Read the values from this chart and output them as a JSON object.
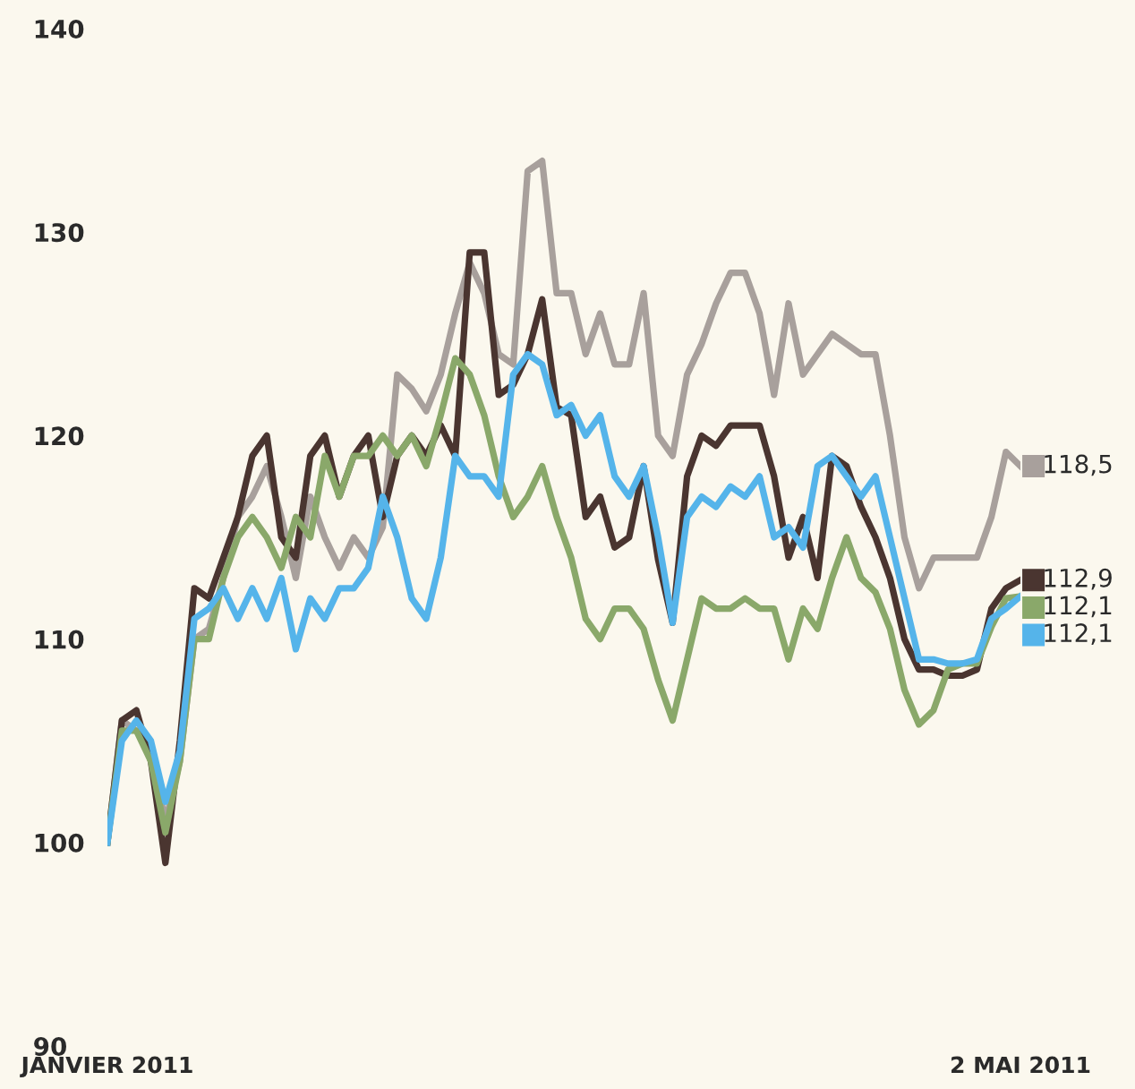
{
  "chart_data": {
    "type": "line",
    "categories": [
      "JANVIER 2011",
      null,
      null,
      null,
      null,
      null,
      null,
      null,
      null,
      null,
      null,
      null,
      null,
      null,
      null,
      null,
      null,
      null,
      null,
      null,
      null,
      null,
      null,
      null,
      null,
      null,
      null,
      null,
      null,
      null,
      null,
      null,
      null,
      null,
      null,
      null,
      null,
      null,
      null,
      null,
      null,
      null,
      null,
      null,
      null,
      null,
      null,
      null,
      null,
      null,
      null,
      null,
      null,
      null,
      null,
      null,
      null,
      null,
      null,
      null,
      null,
      null,
      null,
      "2 MAI 2011"
    ],
    "series": [
      {
        "color": "#a8a09c",
        "values": [
          100,
          106,
          105.5,
          104.5,
          101,
          104,
          110,
          110.5,
          113,
          116,
          117,
          118.5,
          116,
          113,
          117,
          115,
          113.5,
          115,
          114,
          115.5,
          123,
          122.3,
          121.2,
          123,
          126,
          128.5,
          127,
          124,
          123.5,
          133,
          133.5,
          127,
          127,
          124,
          126,
          123.5,
          123.5,
          127,
          120,
          119,
          123,
          124.5,
          126.5,
          128,
          128,
          126,
          122,
          126.5,
          123,
          124,
          125,
          124.5,
          124,
          124,
          120,
          115,
          112.5,
          114,
          114,
          114,
          114,
          116,
          119.2,
          118.5
        ],
        "value_labels": [
          null,
          null,
          null,
          null,
          null,
          null,
          null,
          null,
          null,
          null,
          null,
          null,
          null,
          null,
          null,
          null,
          null,
          null,
          null,
          null,
          null,
          null,
          null,
          null,
          null,
          null,
          null,
          null,
          null,
          null,
          null,
          null,
          null,
          null,
          null,
          null,
          null,
          null,
          null,
          null,
          null,
          null,
          null,
          null,
          null,
          null,
          null,
          null,
          null,
          null,
          null,
          null,
          null,
          null,
          null,
          null,
          null,
          null,
          null,
          null,
          null,
          null,
          null,
          "118,5"
        ]
      },
      {
        "color": "#4a3530",
        "values": [
          100,
          106,
          106.5,
          104,
          99,
          105,
          112.5,
          112,
          114,
          116,
          119,
          120,
          115,
          114,
          119,
          120,
          117,
          119,
          120,
          116,
          119,
          120,
          119,
          120.5,
          119,
          129,
          129,
          122,
          122.5,
          124,
          126.7,
          121.4,
          121,
          116,
          117,
          114.5,
          115,
          118.5,
          113.9,
          110.8,
          118,
          120,
          119.5,
          120.5,
          120.5,
          120.5,
          118,
          114,
          116,
          113,
          119,
          118.5,
          116.5,
          115,
          113,
          110,
          108.5,
          108.5,
          108.2,
          108.2,
          108.5,
          111.5,
          112.5,
          112.9
        ],
        "value_labels": [
          null,
          null,
          null,
          null,
          null,
          null,
          null,
          null,
          null,
          null,
          null,
          null,
          null,
          null,
          null,
          null,
          null,
          null,
          null,
          null,
          null,
          null,
          null,
          null,
          null,
          null,
          null,
          null,
          null,
          null,
          null,
          null,
          null,
          null,
          null,
          null,
          null,
          null,
          null,
          null,
          null,
          null,
          null,
          null,
          null,
          null,
          null,
          null,
          null,
          null,
          null,
          null,
          null,
          null,
          null,
          null,
          null,
          null,
          null,
          null,
          null,
          null,
          null,
          "112,9"
        ]
      },
      {
        "color": "#8aa86a",
        "values": [
          100,
          105.5,
          105.5,
          104,
          100.5,
          104,
          110,
          110,
          113,
          115,
          116,
          115,
          113.5,
          116,
          115,
          119,
          117,
          119,
          119,
          120,
          119,
          120,
          118.5,
          121,
          123.8,
          123,
          121,
          118,
          116,
          117,
          118.5,
          116,
          114,
          111,
          110,
          111.5,
          111.5,
          110.5,
          108,
          106,
          109,
          112,
          111.5,
          111.5,
          112,
          111.5,
          111.5,
          109,
          111.5,
          110.5,
          113,
          115,
          113,
          112.3,
          110.5,
          107.5,
          105.8,
          106.5,
          108.5,
          108.8,
          108.8,
          110.6,
          112,
          112.1
        ],
        "value_labels": [
          null,
          null,
          null,
          null,
          null,
          null,
          null,
          null,
          null,
          null,
          null,
          null,
          null,
          null,
          null,
          null,
          null,
          null,
          null,
          null,
          null,
          null,
          null,
          null,
          null,
          null,
          null,
          null,
          null,
          null,
          null,
          null,
          null,
          null,
          null,
          null,
          null,
          null,
          null,
          null,
          null,
          null,
          null,
          null,
          null,
          null,
          null,
          null,
          null,
          null,
          null,
          null,
          null,
          null,
          null,
          null,
          null,
          null,
          null,
          null,
          null,
          null,
          null,
          "112,1"
        ]
      },
      {
        "color": "#55b4ea",
        "values": [
          100,
          105,
          106,
          105,
          102,
          104.5,
          111,
          111.5,
          112.5,
          111,
          112.5,
          111,
          113,
          109.5,
          112,
          111,
          112.5,
          112.5,
          113.5,
          117,
          115,
          112,
          111,
          114,
          119,
          118,
          118,
          117,
          123,
          124,
          123.5,
          121,
          121.5,
          120,
          121,
          118,
          117,
          118.5,
          115,
          110.8,
          116,
          117,
          116.5,
          117.5,
          117,
          118,
          115,
          115.5,
          114.5,
          118.5,
          119,
          118,
          117,
          118,
          115,
          112,
          109,
          109,
          108.8,
          108.8,
          109,
          111,
          111.5,
          112.1
        ],
        "value_labels": [
          null,
          null,
          null,
          null,
          null,
          null,
          null,
          null,
          null,
          null,
          null,
          null,
          null,
          null,
          null,
          null,
          null,
          null,
          null,
          null,
          null,
          null,
          null,
          null,
          null,
          null,
          null,
          null,
          null,
          null,
          null,
          null,
          null,
          null,
          null,
          null,
          null,
          null,
          null,
          null,
          null,
          null,
          null,
          null,
          null,
          null,
          null,
          null,
          null,
          null,
          null,
          null,
          null,
          null,
          null,
          null,
          null,
          null,
          null,
          null,
          null,
          null,
          null,
          "112,1"
        ]
      }
    ],
    "ylim": [
      90,
      140
    ],
    "yticks": [
      90,
      100,
      110,
      120,
      130,
      140
    ],
    "grid": false,
    "legend": false,
    "marker": "none",
    "line_style": "solid"
  }
}
